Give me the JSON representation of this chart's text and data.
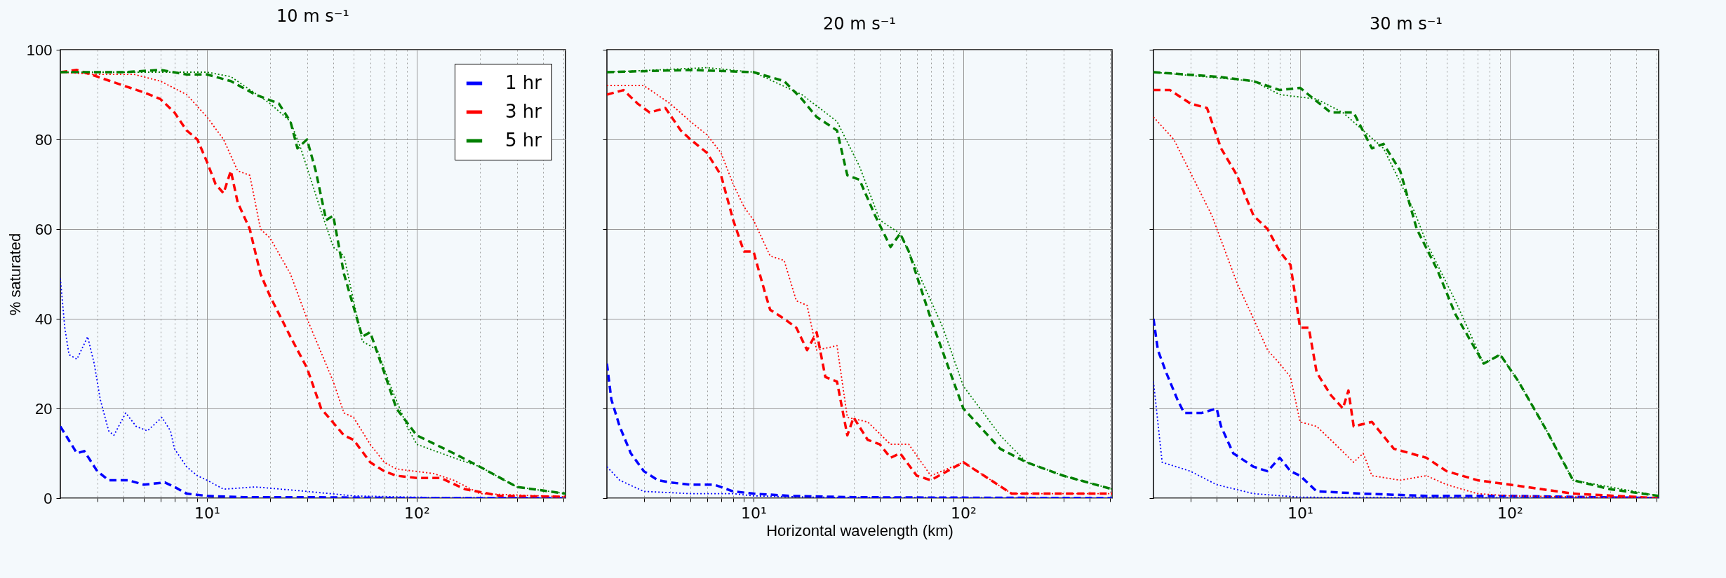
{
  "chart_data": [
    {
      "type": "line",
      "title": "10 m s⁻¹",
      "ylabel": "% saturated",
      "xlim": [
        2,
        512
      ],
      "ylim": [
        0,
        100
      ],
      "log": "x",
      "grid": true,
      "legend": "top right",
      "xticks": [
        {
          "value": 3,
          "label": null
        },
        {
          "value": 4,
          "label": null
        },
        {
          "value": 5,
          "label": null
        },
        {
          "value": 6,
          "label": null
        },
        {
          "value": 7,
          "label": null
        },
        {
          "value": 8,
          "label": null
        },
        {
          "value": 9,
          "label": null
        },
        {
          "value": 10,
          "label": "10¹"
        },
        {
          "value": 20,
          "label": null
        },
        {
          "value": 30,
          "label": null
        },
        {
          "value": 40,
          "label": null
        },
        {
          "value": 50,
          "label": null
        },
        {
          "value": 60,
          "label": null
        },
        {
          "value": 70,
          "label": null
        },
        {
          "value": 80,
          "label": null
        },
        {
          "value": 90,
          "label": null
        },
        {
          "value": 100,
          "label": "10²"
        },
        {
          "value": 200,
          "label": null
        },
        {
          "value": 300,
          "label": null
        },
        {
          "value": 400,
          "label": null
        },
        {
          "value": 500,
          "label": null
        }
      ],
      "yticks": [
        0,
        20,
        40,
        60,
        80,
        100
      ],
      "series": [
        {
          "name": "1 hr",
          "color": "#0000ff",
          "line_style": "dashed",
          "x": [
            2,
            2.4,
            2.6,
            3,
            3.4,
            4.2,
            5,
            6.3,
            7,
            8,
            10,
            15,
            30,
            100,
            512
          ],
          "values": [
            16,
            10,
            10.5,
            6,
            4,
            4,
            3,
            3.5,
            2.5,
            1,
            0.5,
            0.2,
            0.2,
            0,
            0
          ]
        },
        {
          "name": "3 hr",
          "color": "#ff0000",
          "line_style": "dashed",
          "x": [
            2,
            2.4,
            3,
            4,
            5,
            6,
            7,
            8,
            9,
            10,
            11,
            12,
            13,
            14,
            16,
            18,
            20,
            25,
            30,
            35,
            45,
            50,
            60,
            70,
            80,
            100,
            130,
            170,
            250,
            512
          ],
          "values": [
            95,
            95.5,
            94,
            92,
            90.5,
            89,
            86,
            82,
            80,
            75,
            70,
            68,
            73,
            66,
            60,
            50,
            45,
            36,
            29,
            20,
            14,
            13,
            8,
            6,
            5,
            4.5,
            4.5,
            2,
            0.5,
            0.3
          ]
        },
        {
          "name": "5 hr",
          "color": "#008000",
          "line_style": "dashed",
          "x": [
            2,
            4,
            6,
            8,
            10,
            13,
            17,
            22,
            25,
            27,
            30,
            33,
            37,
            40,
            45,
            55,
            60,
            70,
            80,
            100,
            150,
            200,
            300,
            512
          ],
          "values": [
            95,
            95,
            95.5,
            94.5,
            94.5,
            93,
            90,
            88,
            84,
            78,
            80,
            73,
            62,
            63,
            50,
            36,
            37,
            28,
            20,
            14,
            10,
            7,
            2.5,
            1
          ]
        },
        {
          "color": "#0000ff",
          "line_style": "dotted",
          "x": [
            2,
            2.1,
            2.2,
            2.4,
            2.7,
            2.9,
            3.1,
            3.4,
            3.6,
            4.1,
            4.6,
            5.2,
            6.1,
            6.7,
            7,
            8,
            9,
            10,
            12,
            17,
            30,
            50,
            100,
            512
          ],
          "values": [
            49,
            38,
            32,
            31,
            36,
            30,
            22,
            15,
            14,
            19,
            16,
            15,
            18,
            15,
            11,
            7,
            5,
            4,
            2,
            2.5,
            1.5,
            0.5,
            0.2,
            0
          ]
        },
        {
          "color": "#ff0000",
          "line_style": "dotted",
          "x": [
            2,
            3,
            4.5,
            6,
            8,
            10,
            12,
            14,
            16,
            18,
            20,
            25,
            30,
            40,
            45,
            50,
            60,
            70,
            80,
            120,
            150,
            200,
            512
          ],
          "values": [
            95,
            94.5,
            94.5,
            93,
            90,
            85,
            80,
            73,
            72,
            60,
            58,
            50,
            40,
            26,
            19,
            18,
            12,
            8,
            6.5,
            5.5,
            4,
            1,
            0.3
          ]
        },
        {
          "color": "#008000",
          "line_style": "dotted",
          "x": [
            2,
            6,
            10,
            13,
            20,
            25,
            28,
            35,
            40,
            45,
            55,
            65,
            75,
            90,
            100,
            150,
            200,
            300,
            512
          ],
          "values": [
            95,
            95,
            95,
            94,
            88,
            84,
            78,
            64,
            56,
            54,
            35,
            33,
            25,
            16,
            12,
            9,
            7,
            2.5,
            1
          ]
        }
      ]
    },
    {
      "type": "line",
      "title": "20 m s⁻¹",
      "xlabel": "Horizontal wavelength (km)",
      "xlim": [
        2,
        512
      ],
      "ylim": [
        0,
        100
      ],
      "log": "x",
      "grid": true,
      "tick_labels": "x",
      "xticks": [
        {
          "value": 3,
          "label": null
        },
        {
          "value": 4,
          "label": null
        },
        {
          "value": 5,
          "label": null
        },
        {
          "value": 6,
          "label": null
        },
        {
          "value": 7,
          "label": null
        },
        {
          "value": 8,
          "label": null
        },
        {
          "value": 9,
          "label": null
        },
        {
          "value": 10,
          "label": "10¹"
        },
        {
          "value": 20,
          "label": null
        },
        {
          "value": 30,
          "label": null
        },
        {
          "value": 40,
          "label": null
        },
        {
          "value": 50,
          "label": null
        },
        {
          "value": 60,
          "label": null
        },
        {
          "value": 70,
          "label": null
        },
        {
          "value": 80,
          "label": null
        },
        {
          "value": 90,
          "label": null
        },
        {
          "value": 100,
          "label": "10²"
        },
        {
          "value": 200,
          "label": null
        },
        {
          "value": 300,
          "label": null
        },
        {
          "value": 400,
          "label": null
        },
        {
          "value": 500,
          "label": null
        }
      ],
      "yticks": [
        0,
        20,
        40,
        60,
        80,
        100
      ],
      "series": [
        {
          "color": "#0000ff",
          "line_style": "dashed",
          "x": [
            2,
            2.1,
            2.3,
            2.6,
            3,
            3.5,
            4,
            5,
            6.5,
            8,
            10,
            15,
            30,
            100,
            512
          ],
          "values": [
            30,
            22,
            16,
            10,
            6,
            4,
            3.5,
            3,
            3,
            1.5,
            1,
            0.5,
            0.2,
            0.1,
            0
          ]
        },
        {
          "color": "#ff0000",
          "line_style": "dashed",
          "x": [
            2,
            2.4,
            2.8,
            3.2,
            3.8,
            4.5,
            5,
            6,
            7,
            8,
            9,
            10,
            11,
            12,
            14,
            16,
            18,
            20,
            22,
            25,
            28,
            30,
            35,
            40,
            45,
            50,
            60,
            70,
            100,
            170,
            512
          ],
          "values": [
            90,
            91,
            88,
            86,
            87,
            82,
            80,
            77,
            72,
            62,
            55,
            55,
            48,
            42,
            40,
            38,
            33,
            37,
            27,
            26,
            14,
            18,
            13,
            12,
            9,
            10,
            5,
            4,
            8,
            1,
            1
          ]
        },
        {
          "color": "#008000",
          "line_style": "dashed",
          "x": [
            2,
            5,
            10,
            14,
            17,
            20,
            25,
            28,
            32,
            38,
            45,
            50,
            55,
            70,
            100,
            150,
            200,
            300,
            512
          ],
          "values": [
            95,
            95.5,
            95,
            93,
            89,
            85,
            82,
            72,
            71,
            63,
            56,
            59,
            55,
            40,
            20,
            11,
            8,
            5,
            2
          ]
        },
        {
          "color": "#0000ff",
          "line_style": "dotted",
          "x": [
            2,
            2.3,
            3,
            5,
            8,
            10,
            20,
            512
          ],
          "values": [
            7,
            4,
            1.5,
            1,
            1,
            0.5,
            0.2,
            0
          ]
        },
        {
          "color": "#ff0000",
          "line_style": "dotted",
          "x": [
            2,
            3,
            4,
            5,
            6,
            7,
            8,
            9,
            10,
            12,
            14,
            16,
            18,
            20,
            25,
            28,
            35,
            45,
            55,
            70,
            100,
            170,
            512
          ],
          "values": [
            92,
            92,
            88,
            84,
            81,
            77,
            70,
            65,
            62,
            54,
            53,
            44,
            43,
            33,
            34,
            18,
            17,
            12,
            12,
            5,
            8,
            1,
            1
          ]
        },
        {
          "color": "#008000",
          "line_style": "dotted",
          "x": [
            2,
            6,
            10,
            17,
            25,
            32,
            40,
            50,
            60,
            80,
            100,
            150,
            200,
            300,
            512
          ],
          "values": [
            95,
            96,
            95,
            90,
            84,
            74,
            62,
            59,
            51,
            38,
            25,
            14,
            8,
            5,
            2
          ]
        }
      ]
    },
    {
      "type": "line",
      "title": "30 m s⁻¹",
      "xlim": [
        2,
        512
      ],
      "ylim": [
        0,
        100
      ],
      "log": "x",
      "grid": true,
      "tick_labels": "x",
      "xticks": [
        {
          "value": 3,
          "label": null
        },
        {
          "value": 4,
          "label": null
        },
        {
          "value": 5,
          "label": null
        },
        {
          "value": 6,
          "label": null
        },
        {
          "value": 7,
          "label": null
        },
        {
          "value": 8,
          "label": null
        },
        {
          "value": 9,
          "label": null
        },
        {
          "value": 10,
          "label": "10¹"
        },
        {
          "value": 20,
          "label": null
        },
        {
          "value": 30,
          "label": null
        },
        {
          "value": 40,
          "label": null
        },
        {
          "value": 50,
          "label": null
        },
        {
          "value": 60,
          "label": null
        },
        {
          "value": 70,
          "label": null
        },
        {
          "value": 80,
          "label": null
        },
        {
          "value": 90,
          "label": null
        },
        {
          "value": 100,
          "label": "10²"
        },
        {
          "value": 200,
          "label": null
        },
        {
          "value": 300,
          "label": null
        },
        {
          "value": 400,
          "label": null
        },
        {
          "value": 500,
          "label": null
        }
      ],
      "yticks": [
        0,
        20,
        40,
        60,
        80,
        100
      ],
      "series": [
        {
          "color": "#0000ff",
          "line_style": "dashed",
          "x": [
            2,
            2.1,
            2.3,
            2.6,
            2.8,
            3.4,
            4,
            4.2,
            4.8,
            6,
            7,
            8,
            9,
            10,
            12,
            20,
            40,
            100,
            512
          ],
          "values": [
            40,
            33,
            28,
            22,
            19,
            19,
            20,
            16,
            10,
            7,
            6,
            9,
            6,
            5,
            1.5,
            1,
            0.5,
            0.5,
            0
          ]
        },
        {
          "color": "#ff0000",
          "line_style": "dashed",
          "x": [
            2,
            2.4,
            3,
            3.6,
            4.2,
            5,
            6,
            7,
            8,
            9,
            10,
            11,
            12,
            14,
            16,
            17,
            18,
            22,
            28,
            40,
            50,
            70,
            100,
            200,
            512
          ],
          "values": [
            91,
            91,
            88,
            87,
            78,
            72,
            63,
            60,
            55,
            52,
            38,
            38,
            28,
            23,
            20,
            24,
            16,
            17,
            11,
            9,
            6,
            4,
            3,
            1,
            0
          ]
        },
        {
          "color": "#008000",
          "line_style": "dashed",
          "x": [
            2,
            4,
            6,
            8,
            10,
            14,
            18,
            22,
            25,
            30,
            36,
            45,
            55,
            75,
            90,
            110,
            150,
            200,
            300,
            512
          ],
          "values": [
            95,
            94,
            93,
            91,
            91.5,
            86,
            86,
            78,
            79,
            73,
            60,
            51,
            41,
            30,
            32,
            26,
            15,
            4,
            2,
            0.5
          ]
        },
        {
          "color": "#0000ff",
          "line_style": "dotted",
          "x": [
            2,
            2.2,
            3,
            4,
            6,
            10,
            512
          ],
          "values": [
            26,
            8,
            6,
            3,
            1,
            0.2,
            0
          ]
        },
        {
          "color": "#ff0000",
          "line_style": "dotted",
          "x": [
            2,
            2.5,
            3.2,
            3.8,
            5,
            6,
            7,
            8,
            9,
            10,
            12,
            14,
            18,
            20,
            22,
            30,
            40,
            50,
            70,
            100,
            512
          ],
          "values": [
            85,
            80,
            70,
            63,
            48,
            40,
            33,
            30,
            27,
            17,
            16,
            13,
            8,
            10,
            5,
            4,
            5,
            3,
            1,
            0.5,
            0
          ]
        },
        {
          "color": "#008000",
          "line_style": "dotted",
          "x": [
            2,
            6,
            8,
            12,
            16,
            20,
            25,
            35,
            40,
            55,
            75,
            90,
            110,
            150,
            200,
            512
          ],
          "values": [
            95,
            93,
            90,
            89,
            86,
            82,
            78,
            64,
            57,
            44,
            30,
            32,
            26,
            15,
            4,
            0.5
          ]
        }
      ]
    }
  ]
}
